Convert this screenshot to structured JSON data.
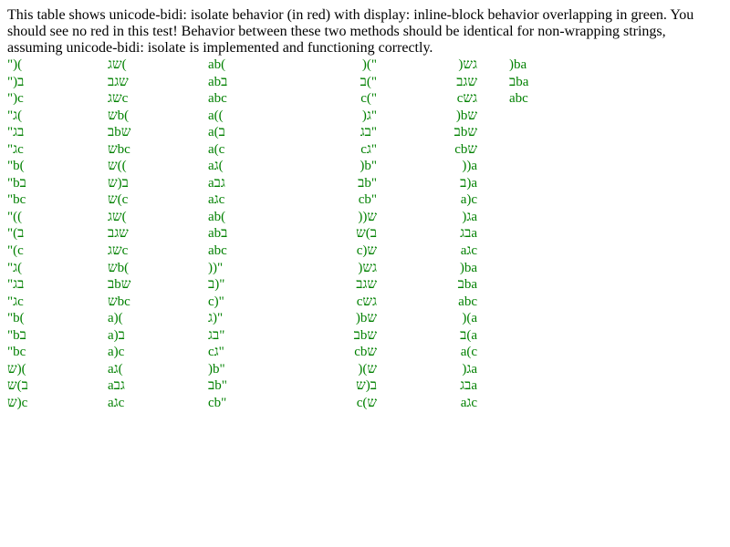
{
  "intro_text": "This table shows unicode-bidi: isolate behavior (in red) with display: inline-block behavior overlapping in green. You should see no red in this test! Behavior between these two methods should be identical for non-wrapping strings, assuming unicode-bidi: isolate is implemented and functioning correctly.",
  "text_color": "#008000",
  "columns": [
    {
      "align": "left",
      "cells": [
        "\")(",
        "\")ב",
        "\")c",
        "\"ג(",
        "\"בג",
        "\"גc",
        "\"b(",
        "\"bב",
        "\"bc",
        "\"((",
        "\"(ב",
        "\"(c",
        "\"ג(",
        "\"בג",
        "\"גc",
        "\"b(",
        "\"bב",
        "\"bc",
        "ש)(",
        "ב)ש",
        "ש)c"
      ]
    },
    {
      "align": "left",
      "cells": [
        "שג(",
        "שגב",
        "שגc",
        "שb(",
        "בbש",
        "שbc",
        "ש((",
        "ב(ש",
        "ש(c",
        "שג(",
        "שגב",
        "שגc",
        "שb(",
        "בbש",
        "שbc",
        "a)(",
        "a)ב",
        "a)c",
        "aג(",
        "aגב",
        "aגc"
      ]
    },
    {
      "align": "left",
      "cells": [
        "ab(",
        "abב",
        "abc",
        "a((",
        "a(ב",
        "a(c",
        "aג(",
        "aגב",
        "aגc",
        "ab(",
        "abב",
        "abc",
        "))\"",
        "ב)\"",
        "c)\"",
        "ג)\"",
        "בג\"",
        "cג\"",
        ")b\"",
        "בb\"",
        "cb\""
      ]
    },
    {
      "align": "right",
      "cells": [
        ")(\"",
        "ב(\"",
        "c(\"",
        ")ג\"",
        "בג\"",
        "cג\"",
        ")b\"",
        "בb\"",
        "cb\"",
        "))ש",
        "ב)ש",
        "c)ש",
        ")גש",
        "שגב",
        "cגש",
        ")bש",
        "בbש",
        "cbש",
        ")(ש",
        "ב(ש",
        "c(ש"
      ]
    },
    {
      "align": "right",
      "cells": [
        ")גש",
        "שגב",
        "cגש",
        ")bש",
        "בbש",
        "cbש",
        "))a",
        "ב)a",
        "a)c",
        ")גa",
        "בגa",
        "aגc",
        ")ba",
        "בba",
        "abc",
        ")(a",
        "ב(a",
        "a(c",
        ")גa",
        "בגa",
        "aגc"
      ]
    },
    {
      "align": "left",
      "cells": [
        ")ba",
        "בba",
        "abc"
      ]
    }
  ]
}
